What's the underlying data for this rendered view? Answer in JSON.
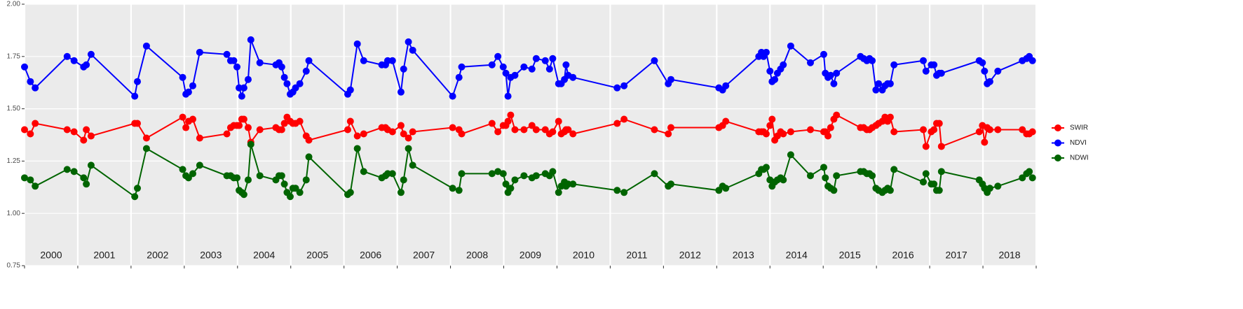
{
  "chart_data": {
    "type": "line",
    "x": [
      2000.0,
      2000.11,
      2000.2,
      2000.8,
      2000.93,
      2001.11,
      2001.16,
      2001.25,
      2002.07,
      2002.12,
      2002.29,
      2002.97,
      2003.03,
      2003.08,
      2003.16,
      2003.29,
      2003.8,
      2003.87,
      2003.93,
      2003.99,
      2004.03,
      2004.08,
      2004.12,
      2004.2,
      2004.25,
      2004.42,
      2004.72,
      2004.78,
      2004.83,
      2004.88,
      2004.93,
      2004.99,
      2005.04,
      2005.09,
      2005.17,
      2005.29,
      2005.34,
      2006.07,
      2006.12,
      2006.25,
      2006.37,
      2006.71,
      2006.78,
      2006.82,
      2006.91,
      2007.07,
      2007.12,
      2007.21,
      2007.29,
      2008.04,
      2008.16,
      2008.21,
      2008.78,
      2008.89,
      2008.99,
      2009.04,
      2009.08,
      2009.13,
      2009.21,
      2009.38,
      2009.53,
      2009.61,
      2009.78,
      2009.86,
      2009.92,
      2010.03,
      2010.08,
      2010.14,
      2010.17,
      2010.21,
      2010.3,
      2011.13,
      2011.26,
      2011.83,
      2012.09,
      2012.14,
      2013.04,
      2013.11,
      2013.17,
      2013.79,
      2013.84,
      2013.88,
      2013.93,
      2014.0,
      2014.04,
      2014.09,
      2014.14,
      2014.2,
      2014.25,
      2014.39,
      2014.76,
      2015.01,
      2015.04,
      2015.09,
      2015.14,
      2015.2,
      2015.25,
      2015.7,
      2015.76,
      2015.82,
      2015.87,
      2015.92,
      2015.99,
      2016.04,
      2016.11,
      2016.16,
      2016.21,
      2016.26,
      2016.33,
      2016.88,
      2016.93,
      2017.03,
      2017.08,
      2017.13,
      2017.18,
      2017.22,
      2017.93,
      2017.99,
      2018.03,
      2018.08,
      2018.13,
      2018.28,
      2018.74,
      2018.82,
      2018.87,
      2018.93
    ],
    "series": [
      {
        "name": "SWIR",
        "color": "#ff0000",
        "values": [
          1.4,
          1.38,
          1.43,
          1.4,
          1.39,
          1.35,
          1.4,
          1.37,
          1.43,
          1.43,
          1.36,
          1.46,
          1.41,
          1.44,
          1.45,
          1.36,
          1.38,
          1.41,
          1.42,
          1.42,
          1.42,
          1.45,
          1.45,
          1.41,
          1.34,
          1.4,
          1.41,
          1.4,
          1.4,
          1.43,
          1.46,
          1.44,
          1.43,
          1.43,
          1.44,
          1.37,
          1.35,
          1.4,
          1.44,
          1.37,
          1.38,
          1.41,
          1.41,
          1.4,
          1.39,
          1.42,
          1.38,
          1.36,
          1.39,
          1.41,
          1.4,
          1.38,
          1.43,
          1.39,
          1.42,
          1.42,
          1.44,
          1.47,
          1.4,
          1.4,
          1.42,
          1.4,
          1.4,
          1.38,
          1.39,
          1.44,
          1.38,
          1.39,
          1.4,
          1.4,
          1.38,
          1.43,
          1.45,
          1.4,
          1.38,
          1.41,
          1.41,
          1.42,
          1.44,
          1.39,
          1.39,
          1.39,
          1.38,
          1.42,
          1.45,
          1.35,
          1.37,
          1.39,
          1.38,
          1.39,
          1.4,
          1.39,
          1.39,
          1.37,
          1.41,
          1.45,
          1.47,
          1.41,
          1.41,
          1.4,
          1.4,
          1.41,
          1.42,
          1.43,
          1.44,
          1.46,
          1.44,
          1.46,
          1.39,
          1.4,
          1.32,
          1.39,
          1.4,
          1.43,
          1.43,
          1.32,
          1.39,
          1.42,
          1.34,
          1.41,
          1.4,
          1.4,
          1.4,
          1.38,
          1.38,
          1.39
        ]
      },
      {
        "name": "NDVI",
        "color": "#0000ff",
        "values": [
          1.7,
          1.63,
          1.6,
          1.75,
          1.73,
          1.7,
          1.71,
          1.76,
          1.56,
          1.63,
          1.8,
          1.65,
          1.57,
          1.58,
          1.61,
          1.77,
          1.76,
          1.73,
          1.73,
          1.7,
          1.6,
          1.56,
          1.6,
          1.64,
          1.83,
          1.72,
          1.71,
          1.72,
          1.7,
          1.65,
          1.62,
          1.57,
          1.58,
          1.6,
          1.62,
          1.68,
          1.73,
          1.57,
          1.59,
          1.81,
          1.73,
          1.71,
          1.71,
          1.73,
          1.73,
          1.58,
          1.69,
          1.82,
          1.78,
          1.56,
          1.65,
          1.7,
          1.71,
          1.75,
          1.7,
          1.67,
          1.56,
          1.65,
          1.66,
          1.7,
          1.69,
          1.74,
          1.73,
          1.69,
          1.74,
          1.62,
          1.62,
          1.64,
          1.71,
          1.66,
          1.65,
          1.6,
          1.61,
          1.73,
          1.62,
          1.64,
          1.6,
          1.59,
          1.61,
          1.75,
          1.77,
          1.75,
          1.77,
          1.68,
          1.63,
          1.64,
          1.67,
          1.69,
          1.71,
          1.8,
          1.72,
          1.76,
          1.67,
          1.65,
          1.66,
          1.62,
          1.67,
          1.75,
          1.74,
          1.73,
          1.74,
          1.73,
          1.59,
          1.62,
          1.59,
          1.61,
          1.62,
          1.62,
          1.71,
          1.73,
          1.68,
          1.71,
          1.71,
          1.66,
          1.67,
          1.67,
          1.73,
          1.72,
          1.68,
          1.62,
          1.63,
          1.68,
          1.73,
          1.74,
          1.75,
          1.73
        ]
      },
      {
        "name": "NDWI",
        "color": "#006400",
        "values": [
          1.17,
          1.16,
          1.13,
          1.21,
          1.2,
          1.17,
          1.14,
          1.23,
          1.08,
          1.12,
          1.31,
          1.21,
          1.18,
          1.17,
          1.19,
          1.23,
          1.18,
          1.18,
          1.17,
          1.17,
          1.11,
          1.1,
          1.09,
          1.16,
          1.33,
          1.18,
          1.16,
          1.18,
          1.18,
          1.14,
          1.1,
          1.08,
          1.12,
          1.12,
          1.1,
          1.16,
          1.27,
          1.09,
          1.1,
          1.31,
          1.2,
          1.17,
          1.18,
          1.19,
          1.19,
          1.1,
          1.16,
          1.31,
          1.23,
          1.12,
          1.11,
          1.19,
          1.19,
          1.2,
          1.19,
          1.14,
          1.1,
          1.12,
          1.16,
          1.18,
          1.17,
          1.18,
          1.19,
          1.18,
          1.2,
          1.1,
          1.13,
          1.15,
          1.13,
          1.14,
          1.14,
          1.11,
          1.1,
          1.19,
          1.13,
          1.14,
          1.11,
          1.13,
          1.12,
          1.19,
          1.21,
          1.21,
          1.22,
          1.16,
          1.13,
          1.15,
          1.16,
          1.17,
          1.16,
          1.28,
          1.18,
          1.22,
          1.17,
          1.13,
          1.12,
          1.11,
          1.18,
          1.2,
          1.2,
          1.19,
          1.19,
          1.18,
          1.12,
          1.11,
          1.1,
          1.11,
          1.12,
          1.11,
          1.21,
          1.15,
          1.19,
          1.14,
          1.14,
          1.11,
          1.11,
          1.2,
          1.16,
          1.14,
          1.12,
          1.1,
          1.12,
          1.13,
          1.17,
          1.19,
          1.2,
          1.17
        ]
      }
    ],
    "xlim": [
      2000,
      2019
    ],
    "xticks": [
      2000,
      2001,
      2002,
      2003,
      2004,
      2005,
      2006,
      2007,
      2008,
      2009,
      2010,
      2011,
      2012,
      2013,
      2014,
      2015,
      2016,
      2017,
      2018,
      2019
    ],
    "year_labels": [
      2000,
      2001,
      2002,
      2003,
      2004,
      2005,
      2006,
      2007,
      2008,
      2009,
      2010,
      2011,
      2012,
      2013,
      2014,
      2015,
      2016,
      2017,
      2018
    ],
    "ylim": [
      0.75,
      2.0
    ],
    "yticks": [
      0.75,
      {
        "value": 1.0,
        "label": "1.00"
      },
      1.25,
      {
        "value": 1.5,
        "label": "1.50"
      },
      1.75,
      {
        "value": 2.0,
        "label": "2.00"
      }
    ],
    "grid": true,
    "legend": "right"
  }
}
